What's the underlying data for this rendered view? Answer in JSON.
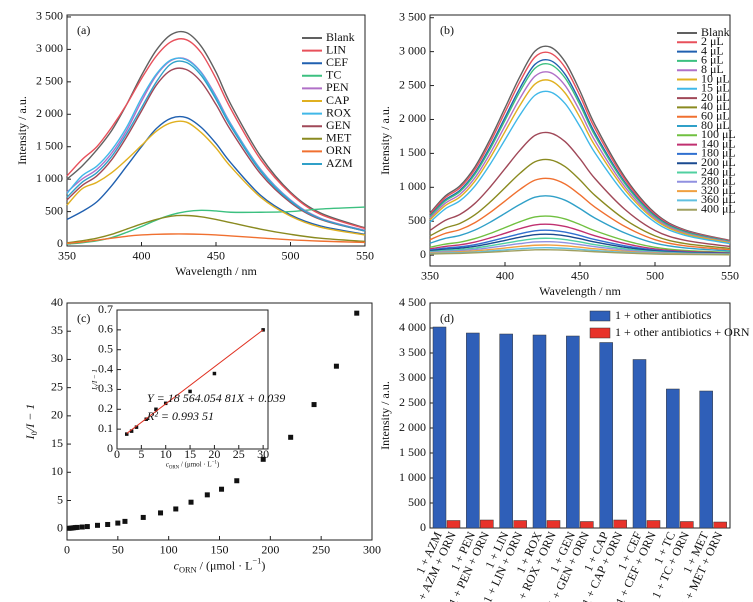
{
  "chart_data": [
    {
      "type": "line",
      "title": "(a)",
      "xlabel": "Wavelength / nm",
      "ylabel": "Intensity / a.u.",
      "x": [
        350,
        360,
        370,
        380,
        390,
        400,
        410,
        420,
        430,
        440,
        450,
        460,
        480,
        500,
        520,
        550
      ],
      "xlim": [
        350,
        550
      ],
      "xticks": [
        350,
        400,
        450,
        500,
        550
      ],
      "ylim": [
        -30,
        3530
      ],
      "yticks": [
        0,
        500,
        {
          "value": 1000,
          "label": "1 000"
        },
        {
          "value": 1500,
          "label": "1 500"
        },
        {
          "value": 2000,
          "label": "2 000"
        },
        {
          "value": 2500,
          "label": "2 500"
        },
        {
          "value": 3000,
          "label": "3 000"
        },
        {
          "value": 3500,
          "label": "3 500"
        }
      ],
      "legend": "upper right",
      "series": [
        {
          "name": "Blank",
          "color": "#606060",
          "values": [
            1000,
            1200,
            1450,
            1750,
            2150,
            2600,
            2990,
            3230,
            3260,
            3050,
            2650,
            2150,
            1350,
            800,
            480,
            250
          ]
        },
        {
          "name": "LIN",
          "color": "#e8505b",
          "values": [
            1050,
            1300,
            1500,
            1800,
            2150,
            2550,
            2900,
            3120,
            3150,
            2950,
            2550,
            2080,
            1300,
            780,
            460,
            240
          ]
        },
        {
          "name": "CEF",
          "color": "#2060b0",
          "values": [
            380,
            500,
            650,
            900,
            1200,
            1500,
            1780,
            1940,
            1950,
            1800,
            1550,
            1250,
            750,
            450,
            280,
            150
          ]
        },
        {
          "name": "TC",
          "color": "#3cc080",
          "values": [
            0,
            20,
            50,
            100,
            180,
            270,
            370,
            450,
            500,
            520,
            510,
            490,
            490,
            500,
            540,
            570
          ]
        },
        {
          "name": "PEN",
          "color": "#b070c8",
          "values": [
            800,
            1000,
            1150,
            1400,
            1750,
            2200,
            2600,
            2830,
            2850,
            2650,
            2280,
            1850,
            1150,
            680,
            400,
            210
          ]
        },
        {
          "name": "CAP",
          "color": "#e0b020",
          "values": [
            600,
            850,
            950,
            1100,
            1300,
            1520,
            1740,
            1870,
            1880,
            1720,
            1480,
            1190,
            720,
            430,
            260,
            140
          ]
        },
        {
          "name": "ROX",
          "color": "#40b8e8",
          "values": [
            780,
            1050,
            1200,
            1450,
            1800,
            2250,
            2620,
            2840,
            2840,
            2640,
            2260,
            1840,
            1140,
            670,
            390,
            200
          ]
        },
        {
          "name": "GEN",
          "color": "#a04858",
          "values": [
            680,
            900,
            1050,
            1300,
            1650,
            2050,
            2450,
            2680,
            2690,
            2500,
            2150,
            1750,
            1080,
            640,
            380,
            200
          ]
        },
        {
          "name": "MET",
          "color": "#8a8a20",
          "values": [
            20,
            50,
            90,
            150,
            230,
            310,
            380,
            430,
            440,
            420,
            380,
            330,
            230,
            150,
            90,
            40
          ]
        },
        {
          "name": "ORN",
          "color": "#f07030",
          "values": [
            10,
            30,
            60,
            90,
            120,
            140,
            150,
            155,
            155,
            150,
            140,
            125,
            95,
            65,
            45,
            25
          ]
        },
        {
          "name": "AZM",
          "color": "#30a0c8",
          "values": [
            720,
            950,
            1100,
            1350,
            1700,
            2100,
            2500,
            2780,
            2800,
            2600,
            2230,
            1810,
            1120,
            660,
            390,
            200
          ]
        }
      ]
    },
    {
      "type": "line",
      "title": "(b)",
      "xlabel": "Wavelength / nm",
      "ylabel": "Intensity / a.u.",
      "x": [
        350,
        360,
        370,
        380,
        390,
        400,
        410,
        420,
        430,
        440,
        450,
        460,
        480,
        500,
        520,
        550
      ],
      "xlim": [
        350,
        550
      ],
      "xticks": [
        350,
        400,
        450,
        500,
        550
      ],
      "ylim": [
        -160,
        3540
      ],
      "yticks": [
        0,
        500,
        {
          "value": 1000,
          "label": "1 000"
        },
        {
          "value": 1500,
          "label": "1 500"
        },
        {
          "value": 2000,
          "label": "2 000"
        },
        {
          "value": 2500,
          "label": "2 500"
        },
        {
          "value": 3000,
          "label": "3 000"
        },
        {
          "value": 3500,
          "label": "3 500"
        }
      ],
      "legend": "upper right",
      "series": [
        {
          "name": "Blank",
          "color": "#606060",
          "values": [
            620,
            868,
            1023,
            1302,
            1705,
            2170,
            2635,
            3007,
            3069,
            2852,
            2418,
            1922,
            1147,
            620,
            372,
            217
          ]
        },
        {
          "name": "2 μL",
          "color": "#e8505b",
          "values": [
            602,
            843,
            993,
            1264,
            1656,
            2107,
            2559,
            2920,
            2980,
            2769,
            2348,
            1866,
            1114,
            602,
            361,
            211
          ]
        },
        {
          "name": "4 μL",
          "color": "#2060b0",
          "values": [
            580,
            812,
            957,
            1218,
            1595,
            2030,
            2465,
            2813,
            2871,
            2668,
            2262,
            1798,
            1073,
            580,
            348,
            203
          ]
        },
        {
          "name": "6 μL",
          "color": "#3cc080",
          "values": [
            568,
            795,
            937,
            1193,
            1562,
            1988,
            2414,
            2755,
            2812,
            2613,
            2215,
            1761,
            1051,
            568,
            341,
            199
          ]
        },
        {
          "name": "8 μL",
          "color": "#b070c8",
          "values": [
            544,
            762,
            898,
            1142,
            1496,
            1904,
            2312,
            2638,
            2693,
            2502,
            2122,
            1686,
            1006,
            544,
            326,
            190
          ]
        },
        {
          "name": "10 μL",
          "color": "#e0b020",
          "values": [
            520,
            728,
            858,
            1092,
            1430,
            1820,
            2210,
            2522,
            2574,
            2392,
            2028,
            1612,
            962,
            520,
            312,
            182
          ]
        },
        {
          "name": "15 μL",
          "color": "#40b8e8",
          "values": [
            486,
            680,
            802,
            1021,
            1337,
            1701,
            2066,
            2357,
            2406,
            2236,
            1895,
            1507,
            899,
            486,
            292,
            170
          ]
        },
        {
          "name": "20 μL",
          "color": "#a04858",
          "values": [
            364,
            510,
            601,
            764,
            1001,
            1274,
            1547,
            1765,
            1802,
            1674,
            1420,
            1128,
            673,
            364,
            218,
            127
          ]
        },
        {
          "name": "40 μL",
          "color": "#8a8a20",
          "values": [
            284,
            398,
            469,
            596,
            781,
            994,
            1207,
            1377,
            1406,
            1306,
            1108,
            880,
            525,
            284,
            170,
            99
          ]
        },
        {
          "name": "60 μL",
          "color": "#f07030",
          "values": [
            228,
            319,
            376,
            479,
            627,
            798,
            969,
            1106,
            1129,
            1049,
            889,
            707,
            422,
            228,
            137,
            80
          ]
        },
        {
          "name": "80 μL",
          "color": "#30a0c8",
          "values": [
            176,
            246,
            290,
            370,
            484,
            616,
            748,
            854,
            871,
            810,
            686,
            546,
            326,
            176,
            106,
            62
          ]
        },
        {
          "name": "100 μL",
          "color": "#70c040",
          "values": [
            116,
            162,
            191,
            244,
            319,
            406,
            493,
            563,
            574,
            534,
            452,
            360,
            215,
            116,
            70,
            41
          ]
        },
        {
          "name": "140 μL",
          "color": "#c03070",
          "values": [
            92,
            129,
            152,
            193,
            253,
            322,
            391,
            446,
            455,
            423,
            359,
            285,
            170,
            92,
            55,
            32
          ]
        },
        {
          "name": "180 μL",
          "color": "#3070d0",
          "values": [
            74,
            104,
            122,
            155,
            204,
            259,
            315,
            359,
            366,
            340,
            289,
            229,
            137,
            74,
            44,
            26
          ]
        },
        {
          "name": "200 μL",
          "color": "#1a4a90",
          "values": [
            62,
            87,
            102,
            130,
            171,
            217,
            264,
            301,
            307,
            285,
            242,
            192,
            115,
            62,
            37,
            22
          ]
        },
        {
          "name": "240 μL",
          "color": "#50d0a0",
          "values": [
            50,
            70,
            83,
            105,
            138,
            175,
            213,
            243,
            248,
            230,
            195,
            155,
            93,
            50,
            30,
            18
          ]
        },
        {
          "name": "280 μL",
          "color": "#9090e0",
          "values": [
            40,
            56,
            66,
            84,
            110,
            140,
            170,
            194,
            198,
            184,
            156,
            124,
            74,
            40,
            24,
            14
          ]
        },
        {
          "name": "320 μL",
          "color": "#f0a040",
          "values": [
            30,
            42,
            50,
            63,
            83,
            105,
            128,
            146,
            149,
            138,
            117,
            93,
            56,
            30,
            18,
            11
          ]
        },
        {
          "name": "360 μL",
          "color": "#60c0e0",
          "values": [
            22,
            31,
            36,
            46,
            61,
            77,
            94,
            107,
            109,
            101,
            86,
            68,
            41,
            22,
            13,
            8
          ]
        },
        {
          "name": "400 μL",
          "color": "#a0a060",
          "values": [
            16,
            22,
            26,
            34,
            44,
            56,
            68,
            78,
            79,
            74,
            62,
            50,
            30,
            16,
            10,
            6
          ]
        }
      ]
    },
    {
      "type": "scatter",
      "title": "(c)",
      "xlabel": [
        "c",
        "ORN",
        " / (μmol · L",
        "−1",
        ")"
      ],
      "ylabel": [
        "I",
        "0",
        "/I − 1"
      ],
      "color": "#111111",
      "xlim": [
        0,
        300
      ],
      "xticks": [
        0,
        50,
        100,
        150,
        200,
        250,
        300
      ],
      "ylim": [
        -2,
        40
      ],
      "yticks": [
        0,
        5,
        10,
        15,
        20,
        25,
        30,
        35,
        40
      ],
      "x": [
        2,
        4,
        6,
        8,
        10,
        15,
        20,
        30,
        40,
        50,
        57,
        75,
        92,
        107,
        122,
        138,
        152,
        167,
        193,
        220,
        243,
        265,
        285
      ],
      "values": [
        0.08,
        0.1,
        0.15,
        0.2,
        0.23,
        0.3,
        0.38,
        0.6,
        0.75,
        1.0,
        1.3,
        2.0,
        2.8,
        3.5,
        4.7,
        6.0,
        7.0,
        8.5,
        12.3,
        16.2,
        22,
        28.8,
        38.2
      ],
      "inset": {
        "type": "scatter",
        "xlabel": [
          "c",
          "ORN",
          " / (μmol · L",
          "−1",
          ")"
        ],
        "ylabel": [
          "I",
          "0",
          "/I − 1"
        ],
        "color": "#111111",
        "fit_color": "#e03020",
        "xlim": [
          0,
          31
        ],
        "xticks": [
          0,
          5,
          10,
          15,
          20,
          25,
          30
        ],
        "ylim": [
          0,
          0.7
        ],
        "yticks": [
          0,
          0.1,
          0.2,
          0.3,
          0.4,
          0.5,
          0.6,
          0.7
        ],
        "x": [
          2,
          3,
          4,
          6,
          8,
          10,
          15,
          20,
          30
        ],
        "values": [
          0.075,
          0.09,
          0.11,
          0.15,
          0.2,
          0.23,
          0.29,
          0.38,
          0.6
        ],
        "fit_line": {
          "x": [
            2,
            30
          ],
          "values": [
            0.078,
            0.6
          ]
        },
        "annotations": [
          "Y = 18 564.054 81X + 0.039",
          "R² = 0.993 51"
        ]
      }
    },
    {
      "type": "bar",
      "title": "(d)",
      "ylabel": "Intensity / a.u.",
      "ylim": [
        0,
        4500
      ],
      "yticks": [
        0,
        500,
        {
          "value": 1000,
          "label": "1 000"
        },
        {
          "value": 1500,
          "label": "1 500"
        },
        {
          "value": 2000,
          "label": "2 000"
        },
        {
          "value": 2500,
          "label": "2 500"
        },
        {
          "value": 3000,
          "label": "3 000"
        },
        {
          "value": 3500,
          "label": "3 500"
        },
        {
          "value": 4000,
          "label": "4 000"
        },
        {
          "value": 4500,
          "label": "4 500"
        }
      ],
      "legend": "upper left",
      "series": [
        {
          "name": "1 + other antibiotics",
          "color": "#2f5fb8",
          "values": [
            4020,
            3900,
            3880,
            3860,
            3840,
            3710,
            3370,
            2780,
            2740
          ],
          "tick_labels": [
            "1 + AZM",
            "1 + PEN",
            "1 + LIN",
            "1 + ROX",
            "1 + GEN",
            "1 + CAP",
            "1 + CEF",
            "1 + TC",
            "1 + MET"
          ]
        },
        {
          "name": "1 + other antibiotics + ORN",
          "color": "#e8322a",
          "values": [
            150,
            160,
            150,
            150,
            130,
            160,
            150,
            130,
            120
          ],
          "tick_labels": [
            "1 + AZM + ORN",
            "1 + PEN + ORN",
            "1 + LIN + ORN",
            "1 + ROX + ORN",
            "1 + GEN + ORN",
            "1 + CAP + ORN",
            "1 + CEF + ORN",
            "1 + TC + ORN",
            "1 + MET + ORN"
          ]
        }
      ]
    }
  ]
}
